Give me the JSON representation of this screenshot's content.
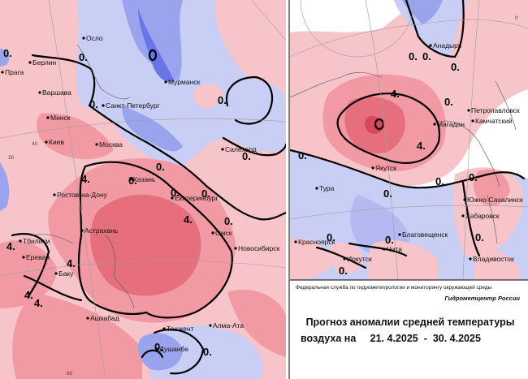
{
  "colors": {
    "warm_light": "#f7c4c9",
    "warm_mid": "#f19aa3",
    "warm_strong": "#e66f7e",
    "warm_core": "#d9465e",
    "cold_light": "#c9cef5",
    "cold_mid": "#9aa3ee",
    "cold_strong": "#6b76e6"
  },
  "left_map": {
    "cities": [
      {
        "name": "Осло"
      },
      {
        "name": "Берлин"
      },
      {
        "name": "Прага"
      },
      {
        "name": "Варшава"
      },
      {
        "name": "Мурманск"
      },
      {
        "name": "Санкт-Петербург"
      },
      {
        "name": "Минск"
      },
      {
        "name": "Киев"
      },
      {
        "name": "Москва"
      },
      {
        "name": "Салехард"
      },
      {
        "name": "Казань"
      },
      {
        "name": "Екатеринбург"
      },
      {
        "name": "Ростов-на-Дону"
      },
      {
        "name": "Астрахань"
      },
      {
        "name": "Омск"
      },
      {
        "name": "Новосибирск"
      },
      {
        "name": "Тбилиси"
      },
      {
        "name": "Ереван"
      },
      {
        "name": "Баку"
      },
      {
        "name": "Ашхабад"
      },
      {
        "name": "Ташкент"
      },
      {
        "name": "Алма-Ата"
      },
      {
        "name": "Душанбе"
      }
    ],
    "isolines": [
      "0.",
      "0.",
      "0.",
      "0.",
      "0.",
      "0.",
      "0.",
      "0.",
      "0.",
      "0.",
      "4.",
      "4.",
      "4.",
      "4.",
      "4.",
      "4.",
      "0.",
      "0."
    ],
    "grid_labels": [
      "40",
      "30",
      "60"
    ]
  },
  "right_map": {
    "cities": [
      {
        "name": "Анадырь"
      },
      {
        "name": "Петропавловск"
      },
      {
        "name": "Камчатский"
      },
      {
        "name": "Магадан"
      },
      {
        "name": "Якутск"
      },
      {
        "name": "Тура"
      },
      {
        "name": "Южно-Сахалинск"
      },
      {
        "name": "Хабаровск"
      },
      {
        "name": "Благовещенск"
      },
      {
        "name": "Красноярск"
      },
      {
        "name": "Чита"
      },
      {
        "name": "Иркутск"
      },
      {
        "name": "Владивосток"
      }
    ],
    "isolines": [
      "0.",
      "0.",
      "0.",
      "0.",
      "0.",
      "4.",
      "4.",
      "0.",
      "0.",
      "0.",
      "0.",
      "0.",
      "0.",
      "0."
    ],
    "grid_labels": [
      "0"
    ]
  },
  "footer": {
    "agency": "Федеральная служба по гидрометеорологии и мониторингу окружающей среды",
    "brand": "Гидрометцентр России",
    "title_line1": "Прогноз аномалии средней температуры",
    "title_line2_prefix": "воздуха на",
    "date_start": "21. 4.2025",
    "date_separator": "-",
    "date_end": "30. 4.2025"
  }
}
